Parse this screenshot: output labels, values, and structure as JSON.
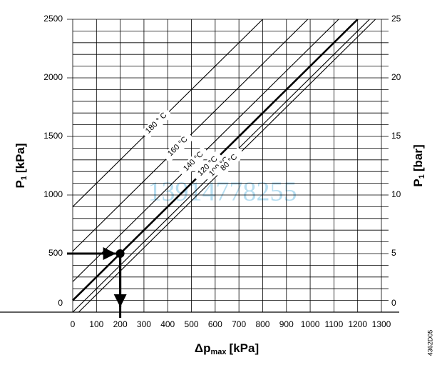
{
  "chart_data": {
    "type": "line",
    "y_label": {
      "main": "P",
      "sub": "1",
      "unit": "[kPa]"
    },
    "y2_label": {
      "main": "P",
      "sub": "1",
      "unit": "[bar]"
    },
    "x_label": {
      "main": "Δp",
      "sub": "max",
      "unit": "[kPa]"
    },
    "figure_code": "4362D05",
    "watermark": "13914778255",
    "xlim": [
      0,
      1300
    ],
    "xticks": [
      0,
      100,
      200,
      300,
      400,
      500,
      600,
      700,
      800,
      900,
      1000,
      1100,
      1200,
      1300
    ],
    "ylim": [
      0,
      2500
    ],
    "yticks": [
      0,
      500,
      1000,
      1500,
      2000,
      2500
    ],
    "y_minor_ticks": [
      100,
      200,
      300,
      400,
      600,
      700,
      800,
      900,
      1100,
      1200,
      1300,
      1400,
      1600,
      1700,
      1800,
      1900,
      2100,
      2200,
      2300,
      2400
    ],
    "y2lim": [
      0,
      25
    ],
    "y2ticks": [
      0,
      5,
      10,
      15,
      20,
      25
    ],
    "grid": true,
    "series": [
      {
        "name": "180 ° C",
        "color": "#000000",
        "x": [
          0,
          800
        ],
        "values": [
          900,
          2500
        ]
      },
      {
        "name": "160 °C",
        "color": "#000000",
        "x": [
          0,
          990
        ],
        "values": [
          520,
          2500
        ]
      },
      {
        "name": "140 °C",
        "color": "#000000",
        "x": [
          0,
          1120
        ],
        "values": [
          260,
          2500
        ]
      },
      {
        "name": "120 °C",
        "color": "#000000",
        "x": [
          0,
          1200
        ],
        "values": [
          100,
          2500
        ],
        "bold": true
      },
      {
        "name": "100 °C",
        "color": "#000000",
        "x": [
          0,
          1250
        ],
        "values": [
          0,
          2500
        ]
      },
      {
        "name": "80 °C",
        "color": "#000000",
        "x": [
          25,
          1275
        ],
        "values": [
          0,
          2500
        ]
      }
    ],
    "example_point": {
      "x": 200,
      "y": 500
    }
  }
}
